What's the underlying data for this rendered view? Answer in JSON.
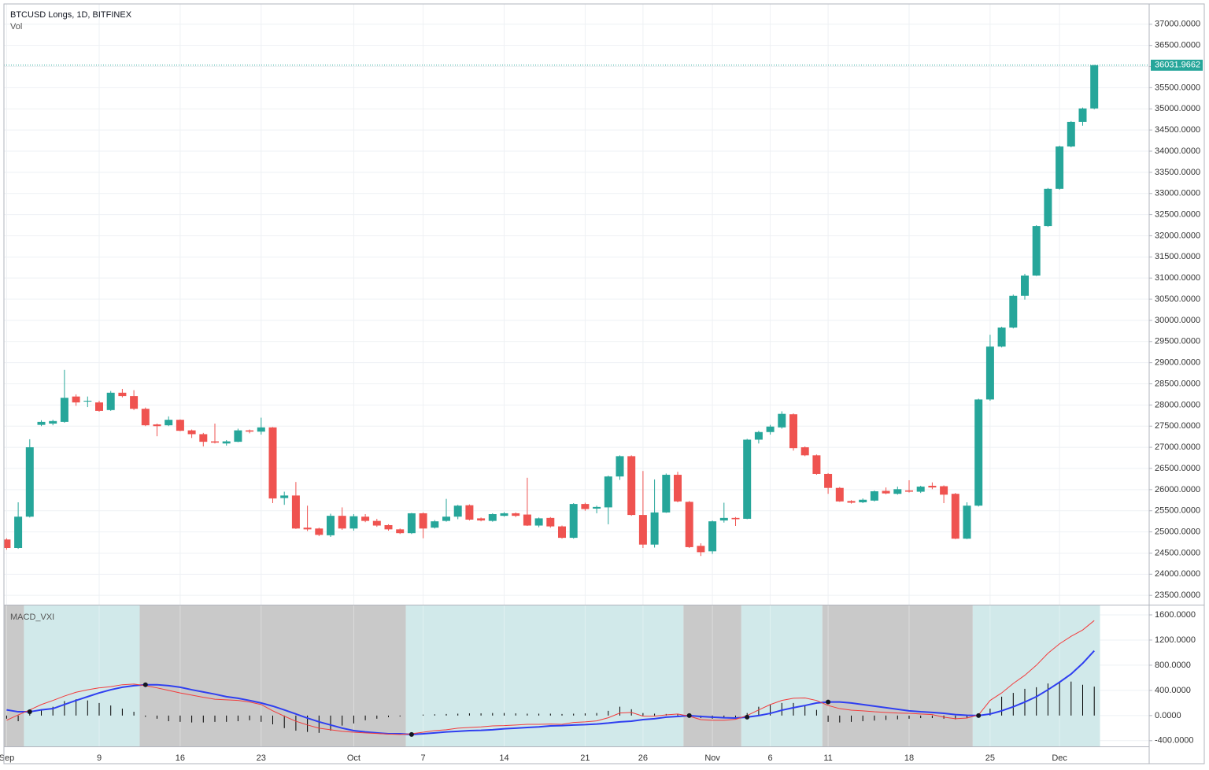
{
  "chart_data": [
    {
      "type": "candlestick",
      "title": "BTCUSD Longs, 1D, BITFINEX",
      "subtitle": "Vol",
      "categories": [
        "Sep",
        null,
        null,
        null,
        null,
        null,
        null,
        null,
        "9",
        null,
        null,
        null,
        null,
        null,
        null,
        "16",
        null,
        null,
        null,
        null,
        null,
        null,
        "23",
        null,
        null,
        null,
        null,
        null,
        null,
        null,
        "Oct",
        null,
        null,
        null,
        null,
        null,
        "7",
        null,
        null,
        null,
        null,
        null,
        null,
        "14",
        null,
        null,
        null,
        null,
        null,
        null,
        "21",
        null,
        null,
        null,
        null,
        "26",
        null,
        null,
        null,
        null,
        null,
        "Nov",
        null,
        null,
        null,
        null,
        "6",
        null,
        null,
        null,
        null,
        "11",
        null,
        null,
        null,
        null,
        null,
        null,
        "18",
        null,
        null,
        null,
        null,
        null,
        null,
        "25",
        null,
        null,
        null,
        null,
        null,
        "Dec",
        null,
        null,
        null
      ],
      "open": [
        24820,
        24620,
        25360,
        27530,
        27560,
        27600,
        28200,
        28080,
        28060,
        27880,
        28290,
        28210,
        27910,
        27540,
        27520,
        27650,
        27400,
        27310,
        27140,
        27090,
        27130,
        27400,
        27370,
        27470,
        25800,
        25860,
        25100,
        25080,
        24920,
        25380,
        25080,
        25360,
        25260,
        25160,
        25060,
        24970,
        25440,
        25100,
        25260,
        25360,
        25630,
        25320,
        25260,
        25380,
        25440,
        25410,
        25150,
        25330,
        25130,
        24860,
        25660,
        25550,
        25580,
        26310,
        26790,
        25400,
        24700,
        25460,
        26350,
        25710,
        24670,
        24540,
        25270,
        25330,
        25310,
        27180,
        27360,
        27470,
        27780,
        27000,
        26810,
        26370,
        26040,
        25730,
        25700,
        25740,
        25970,
        25900,
        25980,
        25950,
        26090,
        26080,
        25900,
        24840,
        25620,
        28130,
        29380,
        29830,
        30580,
        31060,
        32230,
        33110,
        34110,
        34690,
        35010
      ],
      "high": [
        24850,
        25700,
        27190,
        27640,
        27650,
        28830,
        28250,
        28200,
        28100,
        28330,
        28380,
        28350,
        27940,
        27560,
        27730,
        27660,
        27420,
        27340,
        27560,
        27170,
        27440,
        27420,
        27700,
        27480,
        25950,
        26180,
        25620,
        25100,
        25430,
        25580,
        25420,
        25420,
        25310,
        25180,
        25080,
        25450,
        25460,
        25280,
        25780,
        25640,
        25650,
        25340,
        25440,
        25470,
        25460,
        26280,
        25340,
        25350,
        25150,
        25680,
        25690,
        25620,
        26330,
        26810,
        26810,
        26440,
        26240,
        26380,
        26420,
        25730,
        24730,
        25270,
        25690,
        25350,
        27200,
        27390,
        27530,
        27850,
        27800,
        27020,
        26830,
        26390,
        26060,
        25750,
        25790,
        25980,
        26050,
        26070,
        26220,
        26090,
        26170,
        26100,
        25920,
        25700,
        28150,
        29660,
        29850,
        30610,
        31100,
        32250,
        33130,
        34130,
        34710,
        35030,
        36040
      ],
      "low": [
        24580,
        24600,
        25340,
        27500,
        27520,
        27580,
        27980,
        27950,
        27840,
        27860,
        28180,
        27880,
        27500,
        27260,
        27500,
        27380,
        27220,
        27020,
        27090,
        27040,
        27120,
        27330,
        27300,
        25680,
        25640,
        25070,
        25020,
        24900,
        24880,
        25050,
        25030,
        25230,
        25120,
        25030,
        24950,
        24950,
        24850,
        25080,
        25240,
        25300,
        25270,
        25250,
        25240,
        25360,
        25350,
        25140,
        25110,
        25100,
        24840,
        24840,
        25500,
        25440,
        25180,
        26230,
        25380,
        24620,
        24630,
        25450,
        25700,
        24620,
        24430,
        24480,
        25220,
        25140,
        25300,
        27090,
        27300,
        27440,
        26920,
        26790,
        26350,
        25900,
        25710,
        25670,
        25680,
        25720,
        25890,
        25880,
        25930,
        25920,
        26010,
        25680,
        24830,
        24830,
        25600,
        28100,
        29360,
        29810,
        30490,
        31050,
        32210,
        33090,
        34090,
        34600,
        34990
      ],
      "close": [
        24620,
        25360,
        27000,
        27600,
        27620,
        28170,
        28060,
        28100,
        27860,
        28290,
        28210,
        27910,
        27520,
        27500,
        27650,
        27390,
        27310,
        27130,
        27110,
        27140,
        27400,
        27370,
        27470,
        25790,
        25860,
        25080,
        25060,
        24930,
        25380,
        25080,
        25370,
        25260,
        25150,
        25060,
        24970,
        25440,
        25080,
        25250,
        25360,
        25620,
        25290,
        25270,
        25420,
        25440,
        25380,
        25150,
        25320,
        25130,
        24860,
        25660,
        25540,
        25590,
        26310,
        26790,
        25400,
        24700,
        25460,
        26350,
        25720,
        24640,
        24520,
        25250,
        25330,
        25300,
        27180,
        27360,
        27490,
        27790,
        26980,
        26810,
        26370,
        26040,
        25720,
        25690,
        25760,
        25960,
        25910,
        26010,
        25950,
        26070,
        26050,
        25880,
        24840,
        25620,
        28130,
        29380,
        29830,
        30580,
        31060,
        32230,
        33110,
        34110,
        34690,
        35010,
        36031.9662
      ],
      "up_color": "#26a69a",
      "down_color": "#ef5350",
      "ylim": [
        23280,
        37480
      ],
      "yticks": [
        {
          "value": 23500,
          "label": "23500.0000"
        },
        {
          "value": 24000,
          "label": "24000.0000"
        },
        {
          "value": 24500,
          "label": "24500.0000"
        },
        {
          "value": 25000,
          "label": "25000.0000"
        },
        {
          "value": 25500,
          "label": "25500.0000"
        },
        {
          "value": 26000,
          "label": "26000.0000"
        },
        {
          "value": 26500,
          "label": "26500.0000"
        },
        {
          "value": 27000,
          "label": "27000.0000"
        },
        {
          "value": 27500,
          "label": "27500.0000"
        },
        {
          "value": 28000,
          "label": "28000.0000"
        },
        {
          "value": 28500,
          "label": "28500.0000"
        },
        {
          "value": 29000,
          "label": "29000.0000"
        },
        {
          "value": 29500,
          "label": "29500.0000"
        },
        {
          "value": 30000,
          "label": "30000.0000"
        },
        {
          "value": 30500,
          "label": "30500.0000"
        },
        {
          "value": 31000,
          "label": "31000.0000"
        },
        {
          "value": 31500,
          "label": "31500.0000"
        },
        {
          "value": 32000,
          "label": "32000.0000"
        },
        {
          "value": 32500,
          "label": "32500.0000"
        },
        {
          "value": 33000,
          "label": "33000.0000"
        },
        {
          "value": 33500,
          "label": "33500.0000"
        },
        {
          "value": 34000,
          "label": "34000.0000"
        },
        {
          "value": 34500,
          "label": "34500.0000"
        },
        {
          "value": 35000,
          "label": "35000.0000"
        },
        {
          "value": 35500,
          "label": "35500.0000"
        },
        {
          "value": 36000,
          "label": "36000.0000"
        },
        {
          "value": 36500,
          "label": "36500.0000"
        },
        {
          "value": 37000,
          "label": "37000.0000"
        }
      ],
      "grid": true
    },
    {
      "type": "macd",
      "title": "MACD_VXI",
      "series": [
        {
          "kind": "line",
          "color": "#2f3ff0",
          "values": [
            90,
            60,
            60,
            90,
            110,
            175,
            240,
            300,
            360,
            410,
            450,
            475,
            490,
            490,
            475,
            450,
            410,
            375,
            340,
            300,
            275,
            240,
            200,
            150,
            90,
            25,
            -40,
            -100,
            -150,
            -200,
            -240,
            -260,
            -275,
            -290,
            -290,
            -300,
            -290,
            -275,
            -260,
            -250,
            -240,
            -235,
            -225,
            -210,
            -200,
            -190,
            -180,
            -165,
            -160,
            -150,
            -145,
            -135,
            -120,
            -100,
            -90,
            -65,
            -50,
            -25,
            -15,
            0,
            -15,
            -25,
            -35,
            -40,
            -25,
            0,
            35,
            85,
            125,
            160,
            200,
            215,
            215,
            200,
            175,
            150,
            125,
            100,
            75,
            60,
            50,
            35,
            15,
            5,
            0,
            25,
            75,
            140,
            215,
            300,
            410,
            530,
            660,
            830,
            1030
          ]
        },
        {
          "kind": "line",
          "color": "#f23c3c",
          "values": [
            -75,
            10,
            90,
            175,
            240,
            310,
            370,
            410,
            440,
            460,
            490,
            500,
            475,
            440,
            400,
            360,
            325,
            290,
            260,
            250,
            240,
            215,
            175,
            75,
            -10,
            -90,
            -150,
            -200,
            -225,
            -250,
            -265,
            -275,
            -285,
            -295,
            -300,
            -290,
            -265,
            -240,
            -225,
            -200,
            -190,
            -180,
            -165,
            -160,
            -150,
            -140,
            -140,
            -135,
            -140,
            -110,
            -100,
            -85,
            -35,
            40,
            50,
            -10,
            -10,
            10,
            25,
            -10,
            -65,
            -75,
            -75,
            -60,
            0,
            90,
            175,
            240,
            275,
            280,
            240,
            160,
            110,
            85,
            75,
            60,
            50,
            40,
            35,
            25,
            15,
            -25,
            -50,
            -40,
            10,
            240,
            360,
            510,
            640,
            800,
            990,
            1140,
            1260,
            1360,
            1510
          ]
        },
        {
          "kind": "histogram",
          "color": "#000000",
          "values": [
            -50,
            -90,
            40,
            100,
            140,
            230,
            260,
            240,
            200,
            160,
            110,
            60,
            -20,
            -50,
            -90,
            -100,
            -110,
            -110,
            -100,
            -100,
            -90,
            -75,
            -100,
            -140,
            -200,
            -240,
            -260,
            -275,
            -240,
            -160,
            -125,
            -75,
            -50,
            -25,
            -15,
            0,
            15,
            20,
            25,
            30,
            35,
            35,
            40,
            40,
            35,
            30,
            30,
            30,
            25,
            30,
            35,
            40,
            75,
            140,
            100,
            40,
            30,
            25,
            20,
            -15,
            -40,
            -50,
            -40,
            -25,
            40,
            140,
            175,
            200,
            200,
            150,
            90,
            -100,
            -110,
            -100,
            -90,
            -80,
            -70,
            -60,
            -50,
            -40,
            -40,
            -50,
            -60,
            -40,
            20,
            110,
            300,
            360,
            425,
            450,
            510,
            525,
            540,
            490,
            460
          ]
        }
      ],
      "bull_color": "#d1e9ea",
      "bear_color": "#c9c9c9",
      "ylim": [
        -490,
        1750
      ],
      "yticks": [
        {
          "value": -400,
          "label": "-400.0000"
        },
        {
          "value": 0,
          "label": "0.0000"
        },
        {
          "value": 400,
          "label": "400.0000"
        },
        {
          "value": 800,
          "label": "800.0000"
        },
        {
          "value": 1200,
          "label": "1200.0000"
        },
        {
          "value": 1600,
          "label": "1600.0000"
        }
      ]
    }
  ]
}
